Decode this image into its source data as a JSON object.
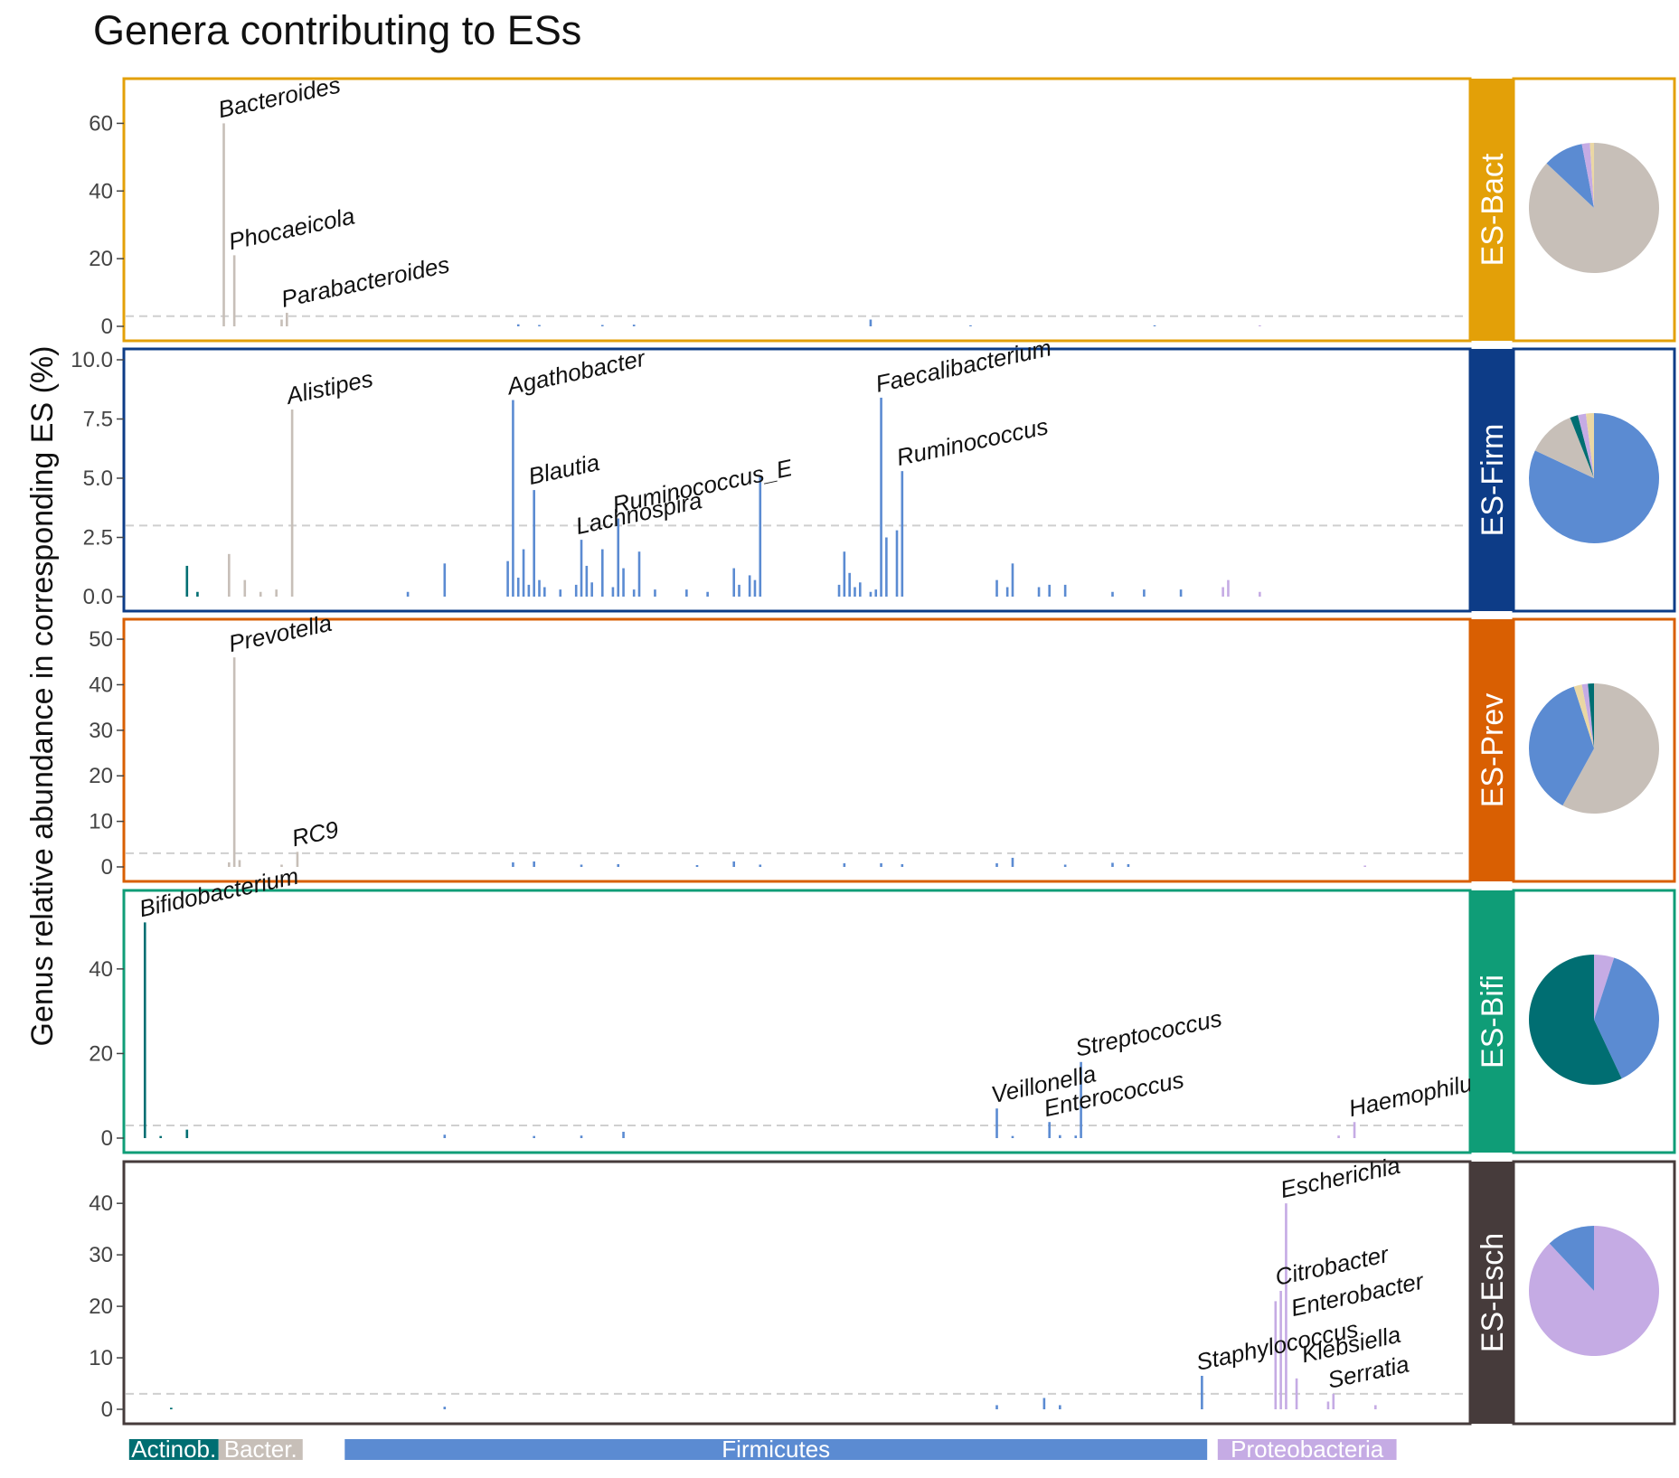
{
  "chart_data": {
    "type": "bar",
    "title": "Genera contributing to ESs",
    "ylabel": "Genus relative abundance in corresponding ES (%)",
    "xlabel": "",
    "threshold": 3,
    "grid": false,
    "phylum_colors": {
      "Actinob.": "#006e72",
      "Bacter.": "#c7bfb8",
      "Firmicutes": "#5b8bd2",
      "Proteobacteria": "#c5abe4"
    },
    "phylum_bar": [
      {
        "name": "Actinob.",
        "start": 0,
        "end": 17
      },
      {
        "name": "Bacter.",
        "start": 17,
        "end": 33
      },
      {
        "name": "Firmicutes",
        "start": 41,
        "end": 205
      },
      {
        "name": "Proteobacteria",
        "start": 207,
        "end": 241
      }
    ],
    "panels": [
      {
        "name": "ES-Bact",
        "strip_color": "#e3a008",
        "ylim": [
          0,
          70
        ],
        "yticks": [
          0,
          20,
          40,
          60
        ],
        "ytick_labels": [
          "0",
          "20",
          "40",
          "60"
        ],
        "bars": [
          {
            "x": 18,
            "v": 60,
            "p": "Bacter."
          },
          {
            "x": 20,
            "v": 21,
            "p": "Bacter."
          },
          {
            "x": 30,
            "v": 4,
            "p": "Bacter."
          },
          {
            "x": 29,
            "v": 2,
            "p": "Bacter."
          },
          {
            "x": 74,
            "v": 0.6,
            "p": "Firmicutes"
          },
          {
            "x": 78,
            "v": 0.4,
            "p": "Firmicutes"
          },
          {
            "x": 90,
            "v": 0.4,
            "p": "Firmicutes"
          },
          {
            "x": 96,
            "v": 0.5,
            "p": "Firmicutes"
          },
          {
            "x": 141,
            "v": 2,
            "p": "Firmicutes"
          },
          {
            "x": 160,
            "v": 0.3,
            "p": "Firmicutes"
          },
          {
            "x": 195,
            "v": 0.3,
            "p": "Firmicutes"
          },
          {
            "x": 215,
            "v": 0.3,
            "p": "Proteobacteria"
          }
        ],
        "labels": [
          {
            "text": "Bacteroides",
            "x": 18,
            "v": 60
          },
          {
            "text": "Phocaeicola",
            "x": 20,
            "v": 21
          },
          {
            "text": "Parabacteroides",
            "x": 30,
            "v": 4
          }
        ],
        "pie": [
          {
            "p": "Bacter.",
            "value": 87
          },
          {
            "p": "Firmicutes",
            "value": 10
          },
          {
            "p": "Proteobacteria",
            "value": 2
          },
          {
            "p": "Other",
            "value": 1
          }
        ]
      },
      {
        "name": "ES-Firm",
        "strip_color": "#0d3c87",
        "ylim": [
          0,
          10
        ],
        "yticks": [
          0,
          2.5,
          5,
          7.5,
          10
        ],
        "ytick_labels": [
          "0.0",
          "2.5",
          "5.0",
          "7.5",
          "10.0"
        ],
        "bars": [
          {
            "x": 11,
            "v": 1.3,
            "p": "Actinob."
          },
          {
            "x": 13,
            "v": 0.2,
            "p": "Actinob."
          },
          {
            "x": 19,
            "v": 1.8,
            "p": "Bacter."
          },
          {
            "x": 22,
            "v": 0.7,
            "p": "Bacter."
          },
          {
            "x": 25,
            "v": 0.2,
            "p": "Bacter."
          },
          {
            "x": 28,
            "v": 0.3,
            "p": "Bacter."
          },
          {
            "x": 31,
            "v": 7.9,
            "p": "Bacter."
          },
          {
            "x": 53,
            "v": 0.2,
            "p": "Firmicutes"
          },
          {
            "x": 60,
            "v": 1.4,
            "p": "Firmicutes"
          },
          {
            "x": 72,
            "v": 1.5,
            "p": "Firmicutes"
          },
          {
            "x": 73,
            "v": 8.3,
            "p": "Firmicutes"
          },
          {
            "x": 74,
            "v": 0.8,
            "p": "Firmicutes"
          },
          {
            "x": 75,
            "v": 2.0,
            "p": "Firmicutes"
          },
          {
            "x": 76,
            "v": 0.5,
            "p": "Firmicutes"
          },
          {
            "x": 77,
            "v": 4.5,
            "p": "Firmicutes"
          },
          {
            "x": 78,
            "v": 0.7,
            "p": "Firmicutes"
          },
          {
            "x": 79,
            "v": 0.4,
            "p": "Firmicutes"
          },
          {
            "x": 82,
            "v": 0.3,
            "p": "Firmicutes"
          },
          {
            "x": 85,
            "v": 0.5,
            "p": "Firmicutes"
          },
          {
            "x": 86,
            "v": 2.4,
            "p": "Firmicutes"
          },
          {
            "x": 87,
            "v": 1.3,
            "p": "Firmicutes"
          },
          {
            "x": 88,
            "v": 0.6,
            "p": "Firmicutes"
          },
          {
            "x": 90,
            "v": 2.0,
            "p": "Firmicutes"
          },
          {
            "x": 92,
            "v": 0.4,
            "p": "Firmicutes"
          },
          {
            "x": 93,
            "v": 3.3,
            "p": "Firmicutes"
          },
          {
            "x": 94,
            "v": 1.2,
            "p": "Firmicutes"
          },
          {
            "x": 96,
            "v": 0.3,
            "p": "Firmicutes"
          },
          {
            "x": 97,
            "v": 1.9,
            "p": "Firmicutes"
          },
          {
            "x": 100,
            "v": 0.3,
            "p": "Firmicutes"
          },
          {
            "x": 106,
            "v": 0.3,
            "p": "Firmicutes"
          },
          {
            "x": 110,
            "v": 0.2,
            "p": "Firmicutes"
          },
          {
            "x": 115,
            "v": 1.2,
            "p": "Firmicutes"
          },
          {
            "x": 116,
            "v": 0.5,
            "p": "Firmicutes"
          },
          {
            "x": 118,
            "v": 0.9,
            "p": "Firmicutes"
          },
          {
            "x": 119,
            "v": 0.7,
            "p": "Firmicutes"
          },
          {
            "x": 120,
            "v": 5.1,
            "p": "Firmicutes"
          },
          {
            "x": 135,
            "v": 0.5,
            "p": "Firmicutes"
          },
          {
            "x": 136,
            "v": 1.9,
            "p": "Firmicutes"
          },
          {
            "x": 137,
            "v": 1.0,
            "p": "Firmicutes"
          },
          {
            "x": 138,
            "v": 0.4,
            "p": "Firmicutes"
          },
          {
            "x": 139,
            "v": 0.6,
            "p": "Firmicutes"
          },
          {
            "x": 141,
            "v": 0.2,
            "p": "Firmicutes"
          },
          {
            "x": 142,
            "v": 0.3,
            "p": "Firmicutes"
          },
          {
            "x": 143,
            "v": 8.4,
            "p": "Firmicutes"
          },
          {
            "x": 144,
            "v": 2.5,
            "p": "Firmicutes"
          },
          {
            "x": 146,
            "v": 2.8,
            "p": "Firmicutes"
          },
          {
            "x": 147,
            "v": 5.3,
            "p": "Firmicutes"
          },
          {
            "x": 165,
            "v": 0.7,
            "p": "Firmicutes"
          },
          {
            "x": 167,
            "v": 0.4,
            "p": "Firmicutes"
          },
          {
            "x": 168,
            "v": 1.4,
            "p": "Firmicutes"
          },
          {
            "x": 173,
            "v": 0.4,
            "p": "Firmicutes"
          },
          {
            "x": 175,
            "v": 0.5,
            "p": "Firmicutes"
          },
          {
            "x": 178,
            "v": 0.5,
            "p": "Firmicutes"
          },
          {
            "x": 187,
            "v": 0.2,
            "p": "Firmicutes"
          },
          {
            "x": 193,
            "v": 0.3,
            "p": "Firmicutes"
          },
          {
            "x": 200,
            "v": 0.3,
            "p": "Firmicutes"
          },
          {
            "x": 208,
            "v": 0.4,
            "p": "Proteobacteria"
          },
          {
            "x": 209,
            "v": 0.7,
            "p": "Proteobacteria"
          },
          {
            "x": 215,
            "v": 0.2,
            "p": "Proteobacteria"
          }
        ],
        "labels": [
          {
            "text": "Alistipes",
            "x": 31,
            "v": 7.9
          },
          {
            "text": "Agathobacter",
            "x": 73,
            "v": 8.3
          },
          {
            "text": "Blautia",
            "x": 77,
            "v": 4.5
          },
          {
            "text": "Lachnospira",
            "x": 86,
            "v": 2.4
          },
          {
            "text": "Ruminococcus_E",
            "x": 93,
            "v": 3.3
          },
          {
            "text": "Faecalibacterium",
            "x": 143,
            "v": 8.4
          },
          {
            "text": "Ruminococcus",
            "x": 147,
            "v": 5.3
          }
        ],
        "pie": [
          {
            "p": "Firmicutes",
            "value": 82
          },
          {
            "p": "Bacter.",
            "value": 12
          },
          {
            "p": "Actinob.",
            "value": 2
          },
          {
            "p": "Proteobacteria",
            "value": 2
          },
          {
            "p": "Other",
            "value": 2
          }
        ]
      },
      {
        "name": "ES-Prev",
        "strip_color": "#d95f02",
        "ylim": [
          0,
          52
        ],
        "yticks": [
          0,
          10,
          20,
          30,
          40,
          50
        ],
        "ytick_labels": [
          "0",
          "10",
          "20",
          "30",
          "40",
          "50"
        ],
        "bars": [
          {
            "x": 20,
            "v": 46,
            "p": "Bacter."
          },
          {
            "x": 21,
            "v": 1.5,
            "p": "Bacter."
          },
          {
            "x": 19,
            "v": 1.0,
            "p": "Bacter."
          },
          {
            "x": 32,
            "v": 3.3,
            "p": "Bacter."
          },
          {
            "x": 29,
            "v": 0.5,
            "p": "Bacter."
          },
          {
            "x": 73,
            "v": 1.0,
            "p": "Firmicutes"
          },
          {
            "x": 77,
            "v": 1.2,
            "p": "Firmicutes"
          },
          {
            "x": 86,
            "v": 0.5,
            "p": "Firmicutes"
          },
          {
            "x": 93,
            "v": 0.6,
            "p": "Firmicutes"
          },
          {
            "x": 108,
            "v": 0.4,
            "p": "Firmicutes"
          },
          {
            "x": 115,
            "v": 1.2,
            "p": "Firmicutes"
          },
          {
            "x": 120,
            "v": 0.5,
            "p": "Firmicutes"
          },
          {
            "x": 136,
            "v": 0.8,
            "p": "Firmicutes"
          },
          {
            "x": 143,
            "v": 0.8,
            "p": "Firmicutes"
          },
          {
            "x": 147,
            "v": 0.6,
            "p": "Firmicutes"
          },
          {
            "x": 165,
            "v": 0.8,
            "p": "Firmicutes"
          },
          {
            "x": 168,
            "v": 2.0,
            "p": "Firmicutes"
          },
          {
            "x": 178,
            "v": 0.5,
            "p": "Firmicutes"
          },
          {
            "x": 187,
            "v": 0.9,
            "p": "Firmicutes"
          },
          {
            "x": 190,
            "v": 0.6,
            "p": "Firmicutes"
          },
          {
            "x": 235,
            "v": 0.3,
            "p": "Proteobacteria"
          }
        ],
        "labels": [
          {
            "text": "Prevotella",
            "x": 20,
            "v": 46
          },
          {
            "text": "RC9",
            "x": 32,
            "v": 3.3
          }
        ],
        "pie": [
          {
            "p": "Bacter.",
            "value": 58
          },
          {
            "p": "Firmicutes",
            "value": 37
          },
          {
            "p": "Other",
            "value": 2
          },
          {
            "p": "Proteobacteria",
            "value": 1.5
          },
          {
            "p": "Actinob.",
            "value": 1.5
          }
        ]
      },
      {
        "name": "ES-Bifi",
        "strip_color": "#0f9d77",
        "ylim": [
          0,
          56
        ],
        "yticks": [
          0,
          20,
          40
        ],
        "ytick_labels": [
          "0",
          "20",
          "40"
        ],
        "bars": [
          {
            "x": 3,
            "v": 51,
            "p": "Actinob."
          },
          {
            "x": 11,
            "v": 2.0,
            "p": "Actinob."
          },
          {
            "x": 6,
            "v": 0.5,
            "p": "Actinob."
          },
          {
            "x": 60,
            "v": 0.8,
            "p": "Firmicutes"
          },
          {
            "x": 77,
            "v": 0.5,
            "p": "Firmicutes"
          },
          {
            "x": 86,
            "v": 0.6,
            "p": "Firmicutes"
          },
          {
            "x": 94,
            "v": 1.5,
            "p": "Firmicutes"
          },
          {
            "x": 165,
            "v": 7.0,
            "p": "Firmicutes"
          },
          {
            "x": 168,
            "v": 0.5,
            "p": "Firmicutes"
          },
          {
            "x": 175,
            "v": 3.8,
            "p": "Firmicutes"
          },
          {
            "x": 177,
            "v": 0.7,
            "p": "Firmicutes"
          },
          {
            "x": 180,
            "v": 0.6,
            "p": "Firmicutes"
          },
          {
            "x": 181,
            "v": 18,
            "p": "Firmicutes"
          },
          {
            "x": 230,
            "v": 0.6,
            "p": "Proteobacteria"
          },
          {
            "x": 233,
            "v": 3.8,
            "p": "Proteobacteria"
          }
        ],
        "labels": [
          {
            "text": "Bifidobacterium",
            "x": 3,
            "v": 51
          },
          {
            "text": "Veillonella",
            "x": 165,
            "v": 7.0
          },
          {
            "text": "Streptococcus",
            "x": 181,
            "v": 18
          },
          {
            "text": "Enterococcus",
            "x": 175,
            "v": 3.8
          },
          {
            "text": "Haemophilus",
            "x": 233,
            "v": 3.8
          }
        ],
        "pie": [
          {
            "p": "Proteobacteria",
            "value": 5
          },
          {
            "p": "Firmicutes",
            "value": 38
          },
          {
            "p": "Actinob.",
            "value": 57
          }
        ]
      },
      {
        "name": "ES-Esch",
        "strip_color": "#463b3b",
        "ylim": [
          0,
          46
        ],
        "yticks": [
          0,
          10,
          20,
          30,
          40
        ],
        "ytick_labels": [
          "0",
          "10",
          "20",
          "30",
          "40"
        ],
        "bars": [
          {
            "x": 8,
            "v": 0.3,
            "p": "Actinob."
          },
          {
            "x": 60,
            "v": 0.5,
            "p": "Firmicutes"
          },
          {
            "x": 165,
            "v": 0.8,
            "p": "Firmicutes"
          },
          {
            "x": 174,
            "v": 2.2,
            "p": "Firmicutes"
          },
          {
            "x": 177,
            "v": 0.8,
            "p": "Firmicutes"
          },
          {
            "x": 204,
            "v": 6.5,
            "p": "Firmicutes"
          },
          {
            "x": 218,
            "v": 21,
            "p": "Proteobacteria"
          },
          {
            "x": 219,
            "v": 23,
            "p": "Proteobacteria"
          },
          {
            "x": 220,
            "v": 40,
            "p": "Proteobacteria"
          },
          {
            "x": 222,
            "v": 6.0,
            "p": "Proteobacteria"
          },
          {
            "x": 228,
            "v": 1.5,
            "p": "Proteobacteria"
          },
          {
            "x": 229,
            "v": 3.0,
            "p": "Proteobacteria"
          },
          {
            "x": 237,
            "v": 0.8,
            "p": "Proteobacteria"
          }
        ],
        "labels": [
          {
            "text": "Escherichia",
            "x": 220,
            "v": 40
          },
          {
            "text": "Citrobacter",
            "x": 219,
            "v": 23
          },
          {
            "text": "Enterobacter",
            "x": 222,
            "v": 17
          },
          {
            "text": "Klebsiella",
            "x": 224,
            "v": 8
          },
          {
            "text": "Serratia",
            "x": 229,
            "v": 3.0
          },
          {
            "text": "Staphylococcus",
            "x": 204,
            "v": 6.5
          }
        ],
        "pie": [
          {
            "p": "Proteobacteria",
            "value": 88
          },
          {
            "p": "Firmicutes",
            "value": 12
          }
        ]
      }
    ]
  }
}
